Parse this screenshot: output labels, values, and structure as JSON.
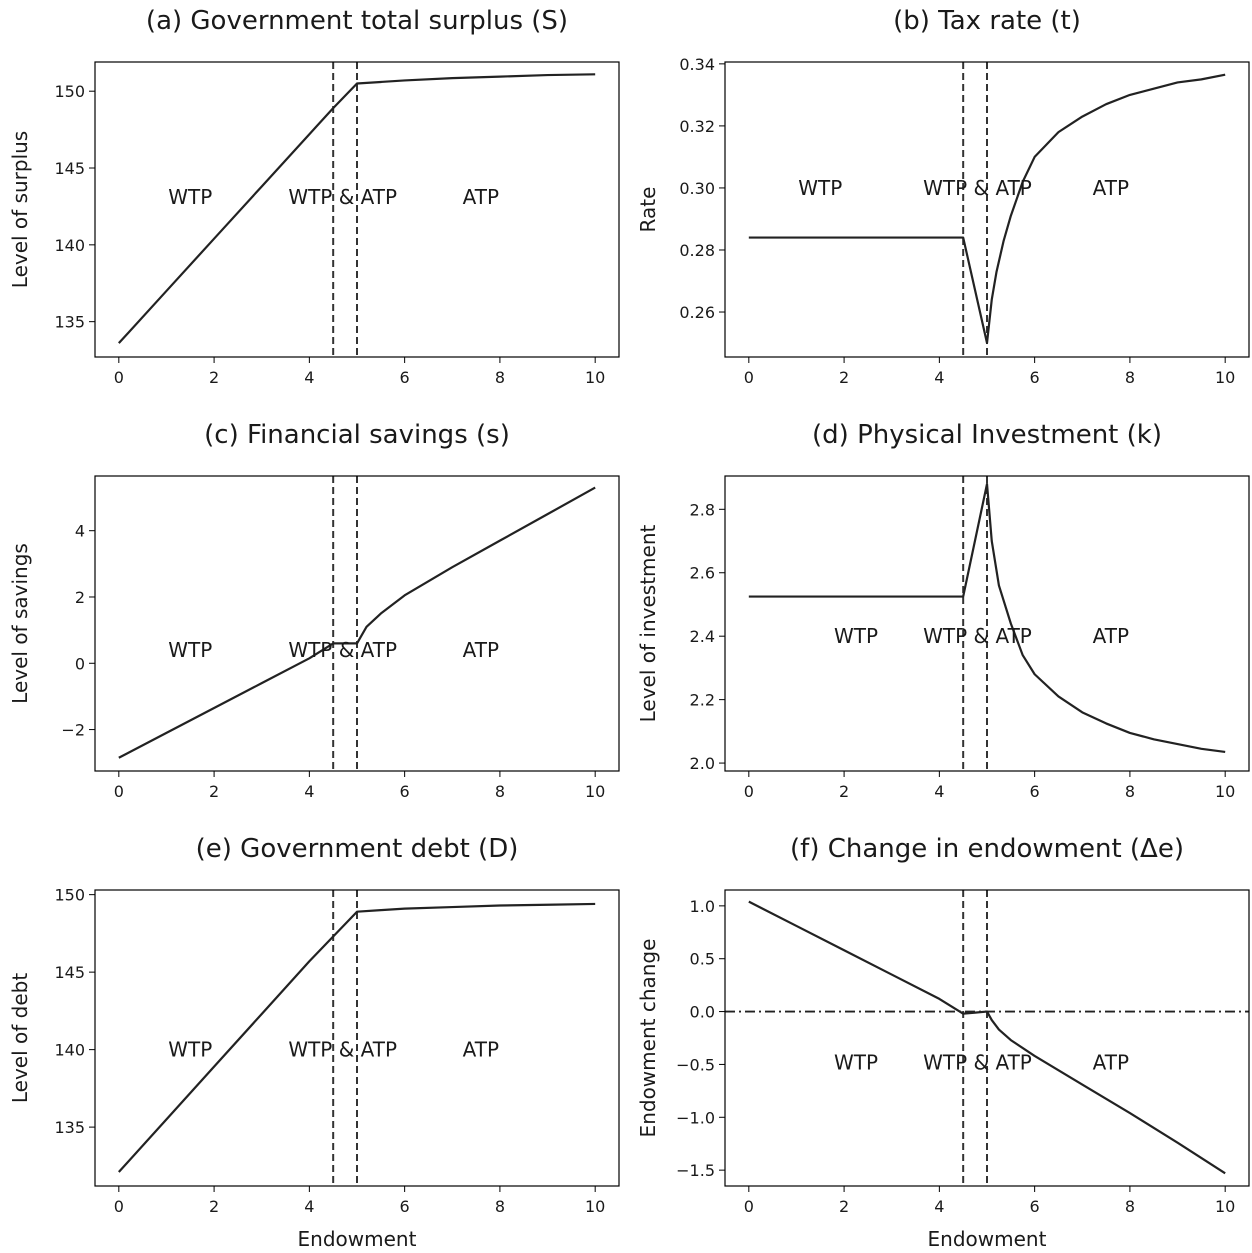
{
  "chart_data": [
    {
      "type": "line",
      "title": "(a) Government total surplus (S)",
      "xlabel": "",
      "ylabel": "Level of surplus",
      "xlim": [
        -0.5,
        10.5
      ],
      "ylim": [
        132.7,
        151.9
      ],
      "xticks": [
        0,
        2,
        4,
        6,
        8,
        10
      ],
      "yticks": [
        135,
        140,
        145,
        150
      ],
      "ytick_labels": [
        "135",
        "140",
        "145",
        "150"
      ],
      "vlines": [
        4.5,
        5.0
      ],
      "region_labels": [
        {
          "text": "WTP",
          "x": 1.5,
          "y": 143.1
        },
        {
          "text": "WTP & ATP",
          "x": 4.7,
          "y": 143.1
        },
        {
          "text": "ATP",
          "x": 7.6,
          "y": 143.1
        }
      ],
      "series": [
        {
          "x": [
            0,
            1,
            2,
            3,
            4,
            4.5,
            5.0,
            5.5,
            6,
            7,
            8,
            9,
            10
          ],
          "y": [
            133.6,
            137.0,
            140.4,
            143.8,
            147.2,
            148.9,
            150.5,
            150.6,
            150.7,
            150.85,
            150.95,
            151.05,
            151.1
          ]
        }
      ]
    },
    {
      "type": "line",
      "title": "(b) Tax rate (t)",
      "xlabel": "",
      "ylabel": "Rate",
      "xlim": [
        -0.5,
        10.5
      ],
      "ylim": [
        0.2455,
        0.3406
      ],
      "xticks": [
        0,
        2,
        4,
        6,
        8,
        10
      ],
      "yticks": [
        0.26,
        0.28,
        0.3,
        0.32,
        0.34
      ],
      "ytick_labels": [
        "0.26",
        "0.28",
        "0.30",
        "0.32",
        "0.34"
      ],
      "vlines": [
        4.5,
        5.0
      ],
      "region_labels": [
        {
          "text": "WTP",
          "x": 1.5,
          "y": 0.3
        },
        {
          "text": "WTP & ATP",
          "x": 4.8,
          "y": 0.3
        },
        {
          "text": "ATP",
          "x": 7.6,
          "y": 0.3
        }
      ],
      "series": [
        {
          "x": [
            0,
            2,
            4,
            4.5,
            5.0,
            5.1,
            5.2,
            5.35,
            5.5,
            5.75,
            6,
            6.5,
            7,
            7.5,
            8,
            8.5,
            9,
            9.5,
            10
          ],
          "y": [
            0.284,
            0.284,
            0.284,
            0.284,
            0.25,
            0.264,
            0.273,
            0.283,
            0.291,
            0.302,
            0.31,
            0.318,
            0.323,
            0.327,
            0.33,
            0.332,
            0.334,
            0.335,
            0.3365
          ]
        }
      ]
    },
    {
      "type": "line",
      "title": "(c) Financial savings (s)",
      "xlabel": "",
      "ylabel": "Level of savings",
      "xlim": [
        -0.5,
        10.5
      ],
      "ylim": [
        -3.25,
        5.65
      ],
      "xticks": [
        0,
        2,
        4,
        6,
        8,
        10
      ],
      "yticks": [
        -2,
        0,
        2,
        4
      ],
      "ytick_labels": [
        "−2",
        "0",
        "2",
        "4"
      ],
      "vlines": [
        4.5,
        5.0
      ],
      "region_labels": [
        {
          "text": "WTP",
          "x": 1.5,
          "y": 0.4
        },
        {
          "text": "WTP & ATP",
          "x": 4.7,
          "y": 0.4
        },
        {
          "text": "ATP",
          "x": 7.6,
          "y": 0.4
        }
      ],
      "series": [
        {
          "x": [
            0,
            1,
            2,
            3,
            4,
            4.5,
            5.0,
            5.2,
            5.5,
            6,
            7,
            8,
            9,
            10
          ],
          "y": [
            -2.85,
            -2.1,
            -1.35,
            -0.6,
            0.15,
            0.6,
            0.6,
            1.1,
            1.5,
            2.05,
            2.9,
            3.7,
            4.5,
            5.3
          ]
        }
      ]
    },
    {
      "type": "line",
      "title": "(d) Physical Investment (k)",
      "xlabel": "",
      "ylabel": "Level of investment",
      "xlim": [
        -0.5,
        10.5
      ],
      "ylim": [
        1.975,
        2.905
      ],
      "xticks": [
        0,
        2,
        4,
        6,
        8,
        10
      ],
      "yticks": [
        2.0,
        2.2,
        2.4,
        2.6,
        2.8
      ],
      "ytick_labels": [
        "2.0",
        "2.2",
        "2.4",
        "2.6",
        "2.8"
      ],
      "vlines": [
        4.5,
        5.0
      ],
      "region_labels": [
        {
          "text": "WTP",
          "x": 2.25,
          "y": 2.4
        },
        {
          "text": "WTP & ATP",
          "x": 4.8,
          "y": 2.4
        },
        {
          "text": "ATP",
          "x": 7.6,
          "y": 2.4
        }
      ],
      "series": [
        {
          "x": [
            0,
            2,
            4,
            4.5,
            5.0,
            5.1,
            5.25,
            5.5,
            5.75,
            6,
            6.5,
            7,
            7.5,
            8,
            8.5,
            9,
            9.5,
            10
          ],
          "y": [
            2.525,
            2.525,
            2.525,
            2.525,
            2.88,
            2.7,
            2.56,
            2.44,
            2.34,
            2.28,
            2.21,
            2.16,
            2.125,
            2.095,
            2.075,
            2.06,
            2.045,
            2.035
          ]
        }
      ]
    },
    {
      "type": "line",
      "title": "(e) Government debt (D)",
      "xlabel": "Endowment",
      "ylabel": "Level of debt",
      "xlim": [
        -0.5,
        10.5
      ],
      "ylim": [
        131.2,
        150.3
      ],
      "xticks": [
        0,
        2,
        4,
        6,
        8,
        10
      ],
      "yticks": [
        135,
        140,
        145,
        150
      ],
      "ytick_labels": [
        "135",
        "140",
        "145",
        "150"
      ],
      "vlines": [
        4.5,
        5.0
      ],
      "region_labels": [
        {
          "text": "WTP",
          "x": 1.5,
          "y": 140.0
        },
        {
          "text": "WTP & ATP",
          "x": 4.7,
          "y": 140.0
        },
        {
          "text": "ATP",
          "x": 7.6,
          "y": 140.0
        }
      ],
      "series": [
        {
          "x": [
            0,
            1,
            2,
            3,
            4,
            4.5,
            5.0,
            5.5,
            6,
            7,
            8,
            9,
            10
          ],
          "y": [
            132.1,
            135.5,
            138.9,
            142.3,
            145.7,
            147.3,
            148.9,
            149.0,
            149.1,
            149.2,
            149.3,
            149.35,
            149.4
          ]
        }
      ]
    },
    {
      "type": "line",
      "title": "(f) Change in endowment (Δe)",
      "xlabel": "Endowment",
      "ylabel": "Endowment change",
      "xlim": [
        -0.5,
        10.5
      ],
      "ylim": [
        -1.65,
        1.15
      ],
      "xticks": [
        0,
        2,
        4,
        6,
        8,
        10
      ],
      "yticks": [
        -1.5,
        -1.0,
        -0.5,
        0.0,
        0.5,
        1.0
      ],
      "ytick_labels": [
        "−1.5",
        "−1.0",
        "−0.5",
        "0.0",
        "0.5",
        "1.0"
      ],
      "vlines": [
        4.5,
        5.0
      ],
      "hline": 0.0,
      "region_labels": [
        {
          "text": "WTP",
          "x": 2.25,
          "y": -0.48
        },
        {
          "text": "WTP & ATP",
          "x": 4.8,
          "y": -0.48
        },
        {
          "text": "ATP",
          "x": 7.6,
          "y": -0.48
        }
      ],
      "series": [
        {
          "x": [
            0,
            1,
            2,
            3,
            4,
            4.5,
            4.75,
            5.0,
            5.1,
            5.25,
            5.5,
            6,
            7,
            8,
            9,
            10
          ],
          "y": [
            1.04,
            0.81,
            0.58,
            0.35,
            0.12,
            -0.02,
            -0.01,
            0.0,
            -0.08,
            -0.17,
            -0.27,
            -0.42,
            -0.69,
            -0.96,
            -1.24,
            -1.53
          ]
        }
      ]
    }
  ]
}
